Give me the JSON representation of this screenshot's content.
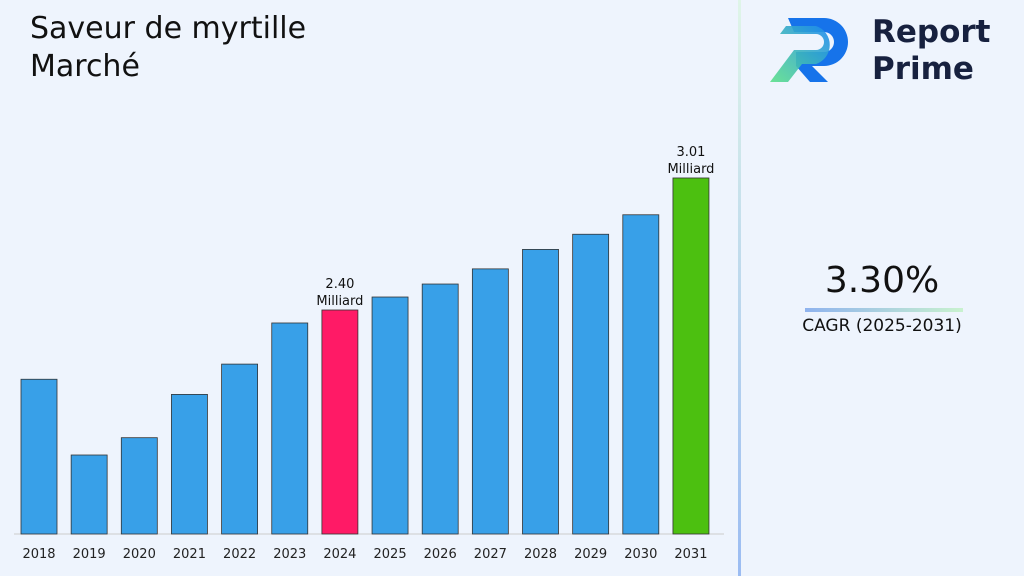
{
  "title_lines": [
    "Saveur de myrtille",
    "Marché"
  ],
  "brand": {
    "line1": "Report",
    "line2": "Prime"
  },
  "cagr": {
    "value": "3.30%",
    "label": "CAGR (2025-2031)"
  },
  "colors": {
    "default_bar": "#38a0e8",
    "highlight_bar": "#ff1a66",
    "final_bar": "#4cc010"
  },
  "chart_data": {
    "type": "bar",
    "title": "Saveur de myrtille Marché",
    "categories": [
      "2018",
      "2019",
      "2020",
      "2021",
      "2022",
      "2023",
      "2024",
      "2025",
      "2026",
      "2027",
      "2028",
      "2029",
      "2030",
      "2031"
    ],
    "values": [
      2.08,
      1.73,
      1.81,
      2.01,
      2.15,
      2.34,
      2.4,
      2.46,
      2.52,
      2.59,
      2.68,
      2.75,
      2.84,
      3.01
    ],
    "unit": "Milliard",
    "ylim": [
      1.365,
      3.1
    ],
    "grid": false,
    "annotations": [
      {
        "category": "2024",
        "value": "2.40",
        "unit": "Milliard"
      },
      {
        "category": "2031",
        "value": "3.01",
        "unit": "Milliard"
      }
    ],
    "highlight": {
      "2024": "highlight_bar",
      "2031": "final_bar"
    }
  }
}
